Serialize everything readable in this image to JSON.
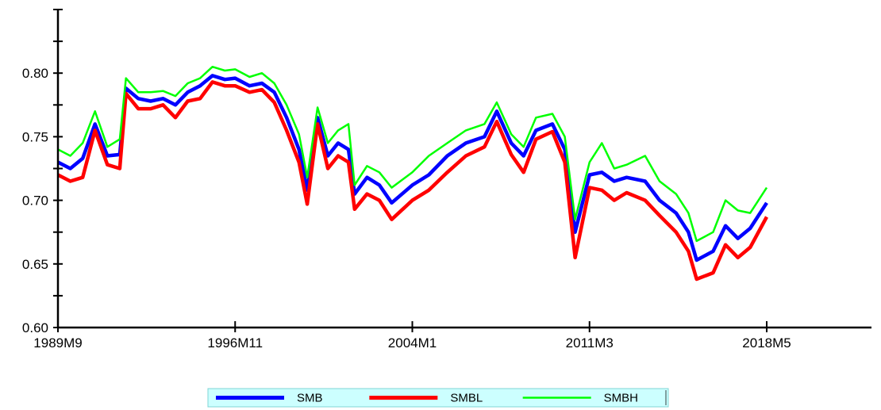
{
  "chart_data": {
    "type": "line",
    "title": "",
    "xlabel": "",
    "ylabel": "",
    "x_range": [
      "1989M9",
      "2018M5"
    ],
    "x_ticks": [
      "1989M9",
      "1996M11",
      "2004M1",
      "2011M3",
      "2018M5"
    ],
    "ylim": [
      0.6,
      0.85
    ],
    "y_ticks": [
      0.6,
      0.65,
      0.7,
      0.75,
      0.8
    ],
    "y_tick_labels": [
      "0.60",
      "0.65",
      "0.70",
      "0.75",
      "0.80"
    ],
    "grid": false,
    "legend_position": "bottom",
    "series": [
      {
        "name": "SMB",
        "color": "#0000ff",
        "line": "thick",
        "points": [
          [
            "1989M9",
            0.73
          ],
          [
            "1990M3",
            0.725
          ],
          [
            "1990M9",
            0.733
          ],
          [
            "1991M3",
            0.76
          ],
          [
            "1991M9",
            0.735
          ],
          [
            "1992M3",
            0.736
          ],
          [
            "1992M6",
            0.788
          ],
          [
            "1992M12",
            0.78
          ],
          [
            "1993M6",
            0.778
          ],
          [
            "1993M12",
            0.78
          ],
          [
            "1994M6",
            0.775
          ],
          [
            "1994M12",
            0.785
          ],
          [
            "1995M6",
            0.79
          ],
          [
            "1995M12",
            0.798
          ],
          [
            "1996M6",
            0.795
          ],
          [
            "1996M11",
            0.796
          ],
          [
            "1997M6",
            0.79
          ],
          [
            "1997M12",
            0.792
          ],
          [
            "1998M6",
            0.785
          ],
          [
            "1998M12",
            0.765
          ],
          [
            "1999M6",
            0.74
          ],
          [
            "1999M10",
            0.708
          ],
          [
            "2000M3",
            0.765
          ],
          [
            "2000M8",
            0.735
          ],
          [
            "2001M1",
            0.745
          ],
          [
            "2001M6",
            0.74
          ],
          [
            "2001M9",
            0.705
          ],
          [
            "2002M3",
            0.718
          ],
          [
            "2002M9",
            0.712
          ],
          [
            "2003M3",
            0.698
          ],
          [
            "2004M1",
            0.712
          ],
          [
            "2004M9",
            0.72
          ],
          [
            "2005M6",
            0.735
          ],
          [
            "2006M3",
            0.745
          ],
          [
            "2006M12",
            0.75
          ],
          [
            "2007M6",
            0.77
          ],
          [
            "2008M1",
            0.745
          ],
          [
            "2008M7",
            0.735
          ],
          [
            "2009M1",
            0.755
          ],
          [
            "2009M9",
            0.76
          ],
          [
            "2010M3",
            0.74
          ],
          [
            "2010M8",
            0.675
          ],
          [
            "2011M3",
            0.72
          ],
          [
            "2011M9",
            0.722
          ],
          [
            "2012M3",
            0.715
          ],
          [
            "2012M9",
            0.718
          ],
          [
            "2013M6",
            0.715
          ],
          [
            "2014M1",
            0.7
          ],
          [
            "2014M9",
            0.69
          ],
          [
            "2015M3",
            0.675
          ],
          [
            "2015M7",
            0.653
          ],
          [
            "2016M3",
            0.66
          ],
          [
            "2016M9",
            0.68
          ],
          [
            "2017M3",
            0.67
          ],
          [
            "2017M9",
            0.678
          ],
          [
            "2018M5",
            0.698
          ]
        ]
      },
      {
        "name": "SMBL",
        "color": "#ff0000",
        "line": "thick",
        "points": [
          [
            "1989M9",
            0.72
          ],
          [
            "1990M3",
            0.715
          ],
          [
            "1990M9",
            0.718
          ],
          [
            "1991M3",
            0.755
          ],
          [
            "1991M9",
            0.728
          ],
          [
            "1992M3",
            0.725
          ],
          [
            "1992M6",
            0.784
          ],
          [
            "1992M12",
            0.772
          ],
          [
            "1993M6",
            0.772
          ],
          [
            "1993M12",
            0.775
          ],
          [
            "1994M6",
            0.765
          ],
          [
            "1994M12",
            0.778
          ],
          [
            "1995M6",
            0.78
          ],
          [
            "1995M12",
            0.793
          ],
          [
            "1996M6",
            0.79
          ],
          [
            "1996M11",
            0.79
          ],
          [
            "1997M6",
            0.785
          ],
          [
            "1997M12",
            0.787
          ],
          [
            "1998M6",
            0.777
          ],
          [
            "1998M12",
            0.755
          ],
          [
            "1999M6",
            0.73
          ],
          [
            "1999M10",
            0.697
          ],
          [
            "2000M3",
            0.76
          ],
          [
            "2000M8",
            0.725
          ],
          [
            "2001M1",
            0.735
          ],
          [
            "2001M6",
            0.73
          ],
          [
            "2001M9",
            0.693
          ],
          [
            "2002M3",
            0.705
          ],
          [
            "2002M9",
            0.7
          ],
          [
            "2003M3",
            0.685
          ],
          [
            "2004M1",
            0.7
          ],
          [
            "2004M9",
            0.708
          ],
          [
            "2005M6",
            0.722
          ],
          [
            "2006M3",
            0.735
          ],
          [
            "2006M12",
            0.742
          ],
          [
            "2007M6",
            0.762
          ],
          [
            "2008M1",
            0.736
          ],
          [
            "2008M7",
            0.722
          ],
          [
            "2009M1",
            0.748
          ],
          [
            "2009M9",
            0.754
          ],
          [
            "2010M3",
            0.73
          ],
          [
            "2010M8",
            0.655
          ],
          [
            "2011M3",
            0.71
          ],
          [
            "2011M9",
            0.708
          ],
          [
            "2012M3",
            0.7
          ],
          [
            "2012M9",
            0.706
          ],
          [
            "2013M6",
            0.7
          ],
          [
            "2014M1",
            0.688
          ],
          [
            "2014M9",
            0.675
          ],
          [
            "2015M3",
            0.66
          ],
          [
            "2015M7",
            0.638
          ],
          [
            "2016M3",
            0.643
          ],
          [
            "2016M9",
            0.665
          ],
          [
            "2017M3",
            0.655
          ],
          [
            "2017M9",
            0.663
          ],
          [
            "2018M5",
            0.687
          ]
        ]
      },
      {
        "name": "SMBH",
        "color": "#00ff00",
        "line": "thin",
        "points": [
          [
            "1989M9",
            0.74
          ],
          [
            "1990M3",
            0.735
          ],
          [
            "1990M9",
            0.745
          ],
          [
            "1991M3",
            0.77
          ],
          [
            "1991M9",
            0.742
          ],
          [
            "1992M3",
            0.748
          ],
          [
            "1992M6",
            0.796
          ],
          [
            "1992M12",
            0.785
          ],
          [
            "1993M6",
            0.785
          ],
          [
            "1993M12",
            0.786
          ],
          [
            "1994M6",
            0.782
          ],
          [
            "1994M12",
            0.792
          ],
          [
            "1995M6",
            0.796
          ],
          [
            "1995M12",
            0.805
          ],
          [
            "1996M6",
            0.802
          ],
          [
            "1996M11",
            0.803
          ],
          [
            "1997M6",
            0.797
          ],
          [
            "1997M12",
            0.8
          ],
          [
            "1998M6",
            0.792
          ],
          [
            "1998M12",
            0.775
          ],
          [
            "1999M6",
            0.752
          ],
          [
            "1999M10",
            0.718
          ],
          [
            "2000M3",
            0.773
          ],
          [
            "2000M8",
            0.745
          ],
          [
            "2001M1",
            0.755
          ],
          [
            "2001M6",
            0.76
          ],
          [
            "2001M9",
            0.712
          ],
          [
            "2002M3",
            0.727
          ],
          [
            "2002M9",
            0.722
          ],
          [
            "2003M3",
            0.71
          ],
          [
            "2004M1",
            0.722
          ],
          [
            "2004M9",
            0.735
          ],
          [
            "2005M6",
            0.745
          ],
          [
            "2006M3",
            0.755
          ],
          [
            "2006M12",
            0.76
          ],
          [
            "2007M6",
            0.777
          ],
          [
            "2008M1",
            0.752
          ],
          [
            "2008M7",
            0.742
          ],
          [
            "2009M1",
            0.765
          ],
          [
            "2009M9",
            0.768
          ],
          [
            "2010M3",
            0.75
          ],
          [
            "2010M8",
            0.685
          ],
          [
            "2011M3",
            0.73
          ],
          [
            "2011M9",
            0.745
          ],
          [
            "2012M3",
            0.725
          ],
          [
            "2012M9",
            0.728
          ],
          [
            "2013M6",
            0.735
          ],
          [
            "2014M1",
            0.715
          ],
          [
            "2014M9",
            0.705
          ],
          [
            "2015M3",
            0.69
          ],
          [
            "2015M7",
            0.668
          ],
          [
            "2016M3",
            0.675
          ],
          [
            "2016M9",
            0.7
          ],
          [
            "2017M3",
            0.692
          ],
          [
            "2017M9",
            0.69
          ],
          [
            "2018M5",
            0.71
          ]
        ]
      }
    ]
  },
  "legend": {
    "background": "#ccffff"
  }
}
